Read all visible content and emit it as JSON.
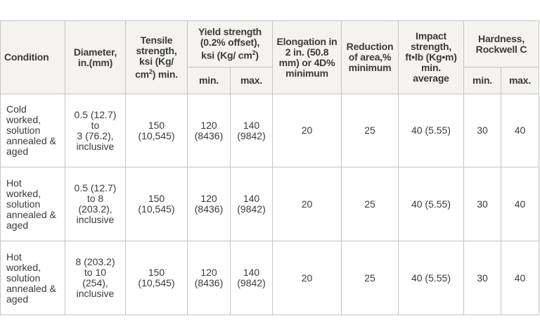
{
  "header": {
    "condition": "Condition",
    "diameter": "Diameter,\nin.(mm)",
    "tensile_line1": "Tensile\nstrength,\nksi (Kg/\ncm",
    "tensile_sup": "2",
    "tensile_line2": ") min.",
    "yield_line1": "Yield strength\n(0.2% offset),\nksi (Kg/ cm",
    "yield_sup": "2",
    "yield_line2": ")",
    "elongation": "Elongation in\n2 in. (50.8\nmm) or 4D%\nminimum",
    "reduction": "Reduction\nof area,%\nminimum",
    "impact": "Impact\nstrength,\nft•lb (Kg•m)\nmin.\naverage",
    "hardness": "Hardness,\nRockwell C",
    "yield_min": "min.",
    "yield_max": "max.",
    "hard_min": "min.",
    "hard_max": "max."
  },
  "rows": [
    {
      "condition": "Cold\nworked,\nsolution\nannealed &\naged",
      "diameter": "0.5 (12.7)\nto\n3 (76.2),\ninclusive",
      "tensile": "150\n(10,545)",
      "yield_min": "120\n(8436)",
      "yield_max": "140\n(9842)",
      "elongation": "20",
      "reduction": "25",
      "impact": "40 (5.55)",
      "hard_min": "30",
      "hard_max": "40"
    },
    {
      "condition": "Hot\nworked,\nsolution\nannealed &\naged",
      "diameter": "0.5 (12.7)\nto 8\n(203.2),\ninclusive",
      "tensile": "150\n(10,545)",
      "yield_min": "120\n(8436)",
      "yield_max": "140\n(9842)",
      "elongation": "20",
      "reduction": "25",
      "impact": "40 (5.55)",
      "hard_min": "30",
      "hard_max": "40"
    },
    {
      "condition": "Hot\nworked,\nsolution\nannealed &\naged",
      "diameter": "8 (203.2)\nto 10\n(254),\ninclusive",
      "tensile": "150\n(10,545)",
      "yield_min": "120\n(8436)",
      "yield_max": "140\n(9842)",
      "elongation": "20",
      "reduction": "25",
      "impact": "40 (5.55)",
      "hard_min": "30",
      "hard_max": "40"
    }
  ]
}
